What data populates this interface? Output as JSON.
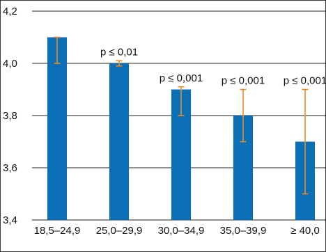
{
  "chart_data": {
    "type": "bar",
    "categories": [
      "18,5–24,9",
      "25,0–29,9",
      "30,0–34,9",
      "35,0–39,9",
      "≥ 40,0"
    ],
    "values": [
      4.1,
      4.0,
      3.9,
      3.8,
      3.7
    ],
    "error_low": [
      4.0,
      3.99,
      3.8,
      3.7,
      3.5
    ],
    "error_high": [
      4.1,
      4.01,
      3.91,
      3.9,
      3.9
    ],
    "annotations": [
      "",
      "p ≤ 0,01",
      "p ≤ 0,001",
      "p ≤ 0,001",
      "p ≤ 0,001"
    ],
    "yticks": [
      3.4,
      3.6,
      3.8,
      4.0,
      4.2
    ],
    "ytick_labels": [
      "3,4",
      "3,6",
      "3,8",
      "4,0",
      "4,2"
    ],
    "ylim": [
      3.4,
      4.2
    ],
    "title": "",
    "xlabel": "",
    "ylabel": "",
    "grid": true,
    "colors": {
      "bar": "#0b6fb8",
      "error": "#f08a24",
      "grid": "#222222"
    }
  }
}
